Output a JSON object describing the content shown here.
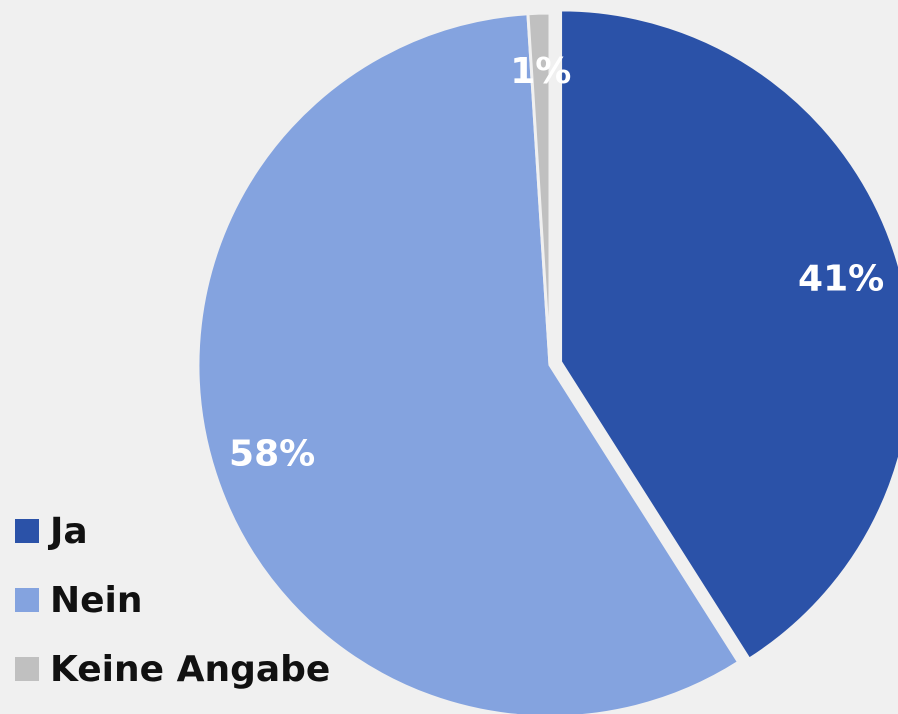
{
  "chart_data": {
    "type": "pie",
    "categories": [
      "Ja",
      "Nein",
      "Keine Angabe"
    ],
    "values": [
      41,
      58,
      1
    ],
    "value_labels": [
      "41%",
      "58%",
      "1%"
    ],
    "colors": [
      "#2b52a8",
      "#84a3df",
      "#c0c0c0"
    ],
    "legend": "bottom-left"
  }
}
